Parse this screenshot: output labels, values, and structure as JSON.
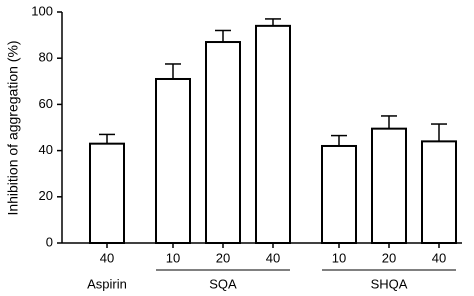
{
  "chart_data": {
    "type": "bar",
    "y_label": "Inhibition of aggregation (%)",
    "ylim": [
      0,
      100
    ],
    "yticks": [
      0,
      20,
      40,
      60,
      80,
      100
    ],
    "color": "#ffffff",
    "groups": [
      {
        "name": "Aspirin",
        "categories": [
          "40"
        ],
        "values": [
          43
        ],
        "errors": [
          4
        ]
      },
      {
        "name": "SQA",
        "categories": [
          "10",
          "20",
          "40"
        ],
        "values": [
          71,
          87,
          94
        ],
        "errors": [
          6.5,
          5,
          3
        ]
      },
      {
        "name": "SHQA",
        "categories": [
          "10",
          "20",
          "40"
        ],
        "values": [
          42,
          49.5,
          44
        ],
        "errors": [
          4.5,
          5.5,
          7.5
        ]
      }
    ]
  }
}
